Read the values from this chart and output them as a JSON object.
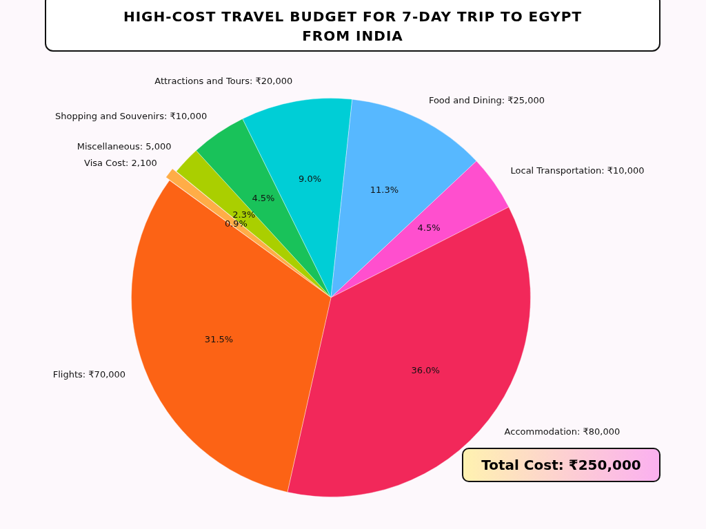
{
  "chart_data": {
    "type": "pie",
    "title": "HIGH-COST TRAVEL BUDGET FOR 7-DAY TRIP TO EGYPT FROM INDIA",
    "categories": [
      "Visa Cost: 2,100",
      "Miscellaneous: 5,000",
      "Shopping and Souvenirs: ₹10,000",
      "Attractions and Tours: ₹20,000",
      "Food and Dining: ₹25,000",
      "Local Transportation: ₹10,000",
      "Accommodation: ₹80,000",
      "Flights: ₹70,000"
    ],
    "values": [
      0.9,
      2.3,
      4.5,
      9.0,
      11.3,
      4.5,
      36.0,
      31.5
    ],
    "value_labels": [
      "0.9%",
      "2.3%",
      "4.5%",
      "9.0%",
      "11.3%",
      "4.5%",
      "36.0%",
      "31.5%"
    ],
    "colors": [
      "#ffad47",
      "#aacf00",
      "#19c25a",
      "#00ced6",
      "#57b8ff",
      "#ff4fce",
      "#f2285a",
      "#fc6315"
    ],
    "annotations": [
      "Total Cost: ₹250,000"
    ],
    "legend": false
  }
}
